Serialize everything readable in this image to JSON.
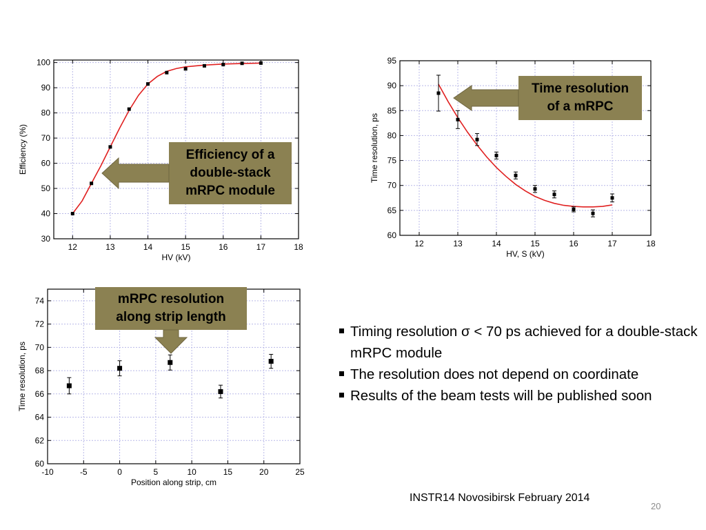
{
  "chart_data": [
    {
      "id": "efficiency",
      "type": "scatter",
      "xlabel": "HV (kV)",
      "ylabel": "Efficiency (%)",
      "xlim": [
        11.5,
        18
      ],
      "ylim": [
        30,
        101
      ],
      "xticks": [
        12,
        13,
        14,
        15,
        16,
        17,
        18
      ],
      "yticks": [
        30,
        40,
        50,
        60,
        70,
        80,
        90,
        100
      ],
      "grid": true,
      "series": [
        {
          "x": [
            12,
            12.5,
            13,
            13.5,
            14,
            14.5,
            15,
            15.5,
            16,
            16.5,
            17
          ],
          "y": [
            40,
            52,
            66.5,
            81.5,
            91.5,
            96,
            97.5,
            98.7,
            99.2,
            99.7,
            99.8
          ],
          "fit": {
            "x": [
              12,
              12.25,
              12.5,
              12.75,
              13,
              13.25,
              13.5,
              13.75,
              14,
              14.25,
              14.5,
              14.75,
              15,
              15.5,
              16,
              16.5,
              17
            ],
            "y": [
              40,
              45,
              52,
              59,
              66.5,
              74,
              81,
              87,
              91.5,
              94.5,
              96.5,
              97.6,
              98.3,
              99,
              99.4,
              99.6,
              99.8
            ]
          }
        }
      ],
      "callout": {
        "lines": [
          "Efficiency of a",
          "double-stack",
          "mRPC module"
        ]
      }
    },
    {
      "id": "time-vs-hv",
      "type": "scatter",
      "xlabel": "HV, S (kV)",
      "ylabel": "Time resolution, ps",
      "xlim": [
        11.5,
        18
      ],
      "ylim": [
        60,
        95
      ],
      "xticks": [
        12,
        13,
        14,
        15,
        16,
        17,
        18
      ],
      "yticks": [
        60,
        65,
        70,
        75,
        80,
        85,
        90,
        95
      ],
      "grid": true,
      "series": [
        {
          "x": [
            12.5,
            13,
            13.5,
            14,
            14.5,
            15,
            15.5,
            16,
            16.5,
            17
          ],
          "y": [
            88.5,
            83.2,
            79.2,
            76,
            72,
            69.3,
            68.2,
            65.2,
            64.4,
            67.5
          ],
          "err": [
            3.6,
            1.8,
            1.2,
            0.7,
            0.7,
            0.7,
            0.7,
            0.5,
            0.7,
            0.8
          ],
          "fit": {
            "x": [
              12.5,
              12.75,
              13,
              13.25,
              13.5,
              13.75,
              14,
              14.25,
              14.5,
              14.75,
              15,
              15.25,
              15.5,
              15.75,
              16,
              16.25,
              16.5,
              16.75,
              17
            ],
            "y": [
              90.3,
              86.8,
              83.6,
              80.7,
              78.1,
              75.7,
              73.6,
              71.8,
              70.2,
              68.9,
              67.8,
              67,
              66.4,
              66,
              65.8,
              65.7,
              65.7,
              65.8,
              66.1
            ]
          }
        }
      ],
      "callout": {
        "lines": [
          "Time resolution",
          "of a mRPC"
        ]
      }
    },
    {
      "id": "time-vs-position",
      "type": "scatter",
      "xlabel": "Position along strip, cm",
      "ylabel": "Time resolution, ps",
      "xlim": [
        -10,
        25
      ],
      "ylim": [
        60,
        75
      ],
      "xticks": [
        -10,
        -5,
        0,
        5,
        10,
        15,
        20,
        25
      ],
      "yticks": [
        60,
        62,
        64,
        66,
        68,
        70,
        72,
        74
      ],
      "grid": true,
      "series": [
        {
          "x": [
            -7,
            0,
            7,
            14,
            21
          ],
          "y": [
            66.7,
            68.2,
            68.7,
            66.2,
            68.8
          ],
          "err": [
            0.7,
            0.65,
            0.65,
            0.55,
            0.6
          ]
        }
      ],
      "callout": {
        "lines": [
          "mRPC  resolution",
          "along strip length"
        ]
      }
    }
  ],
  "bullets": [
    "Timing resolution σ < 70 ps achieved for a double-stack mRPC module",
    "The resolution does not depend on coordinate",
    "Results of the beam tests will be published soon"
  ],
  "footer": "INSTR14 Novosibirsk February 2014",
  "page_number": "20",
  "colors": {
    "fit": "#e02020",
    "callout_fill": "#8b8152",
    "grid": "#b8b8e8"
  }
}
